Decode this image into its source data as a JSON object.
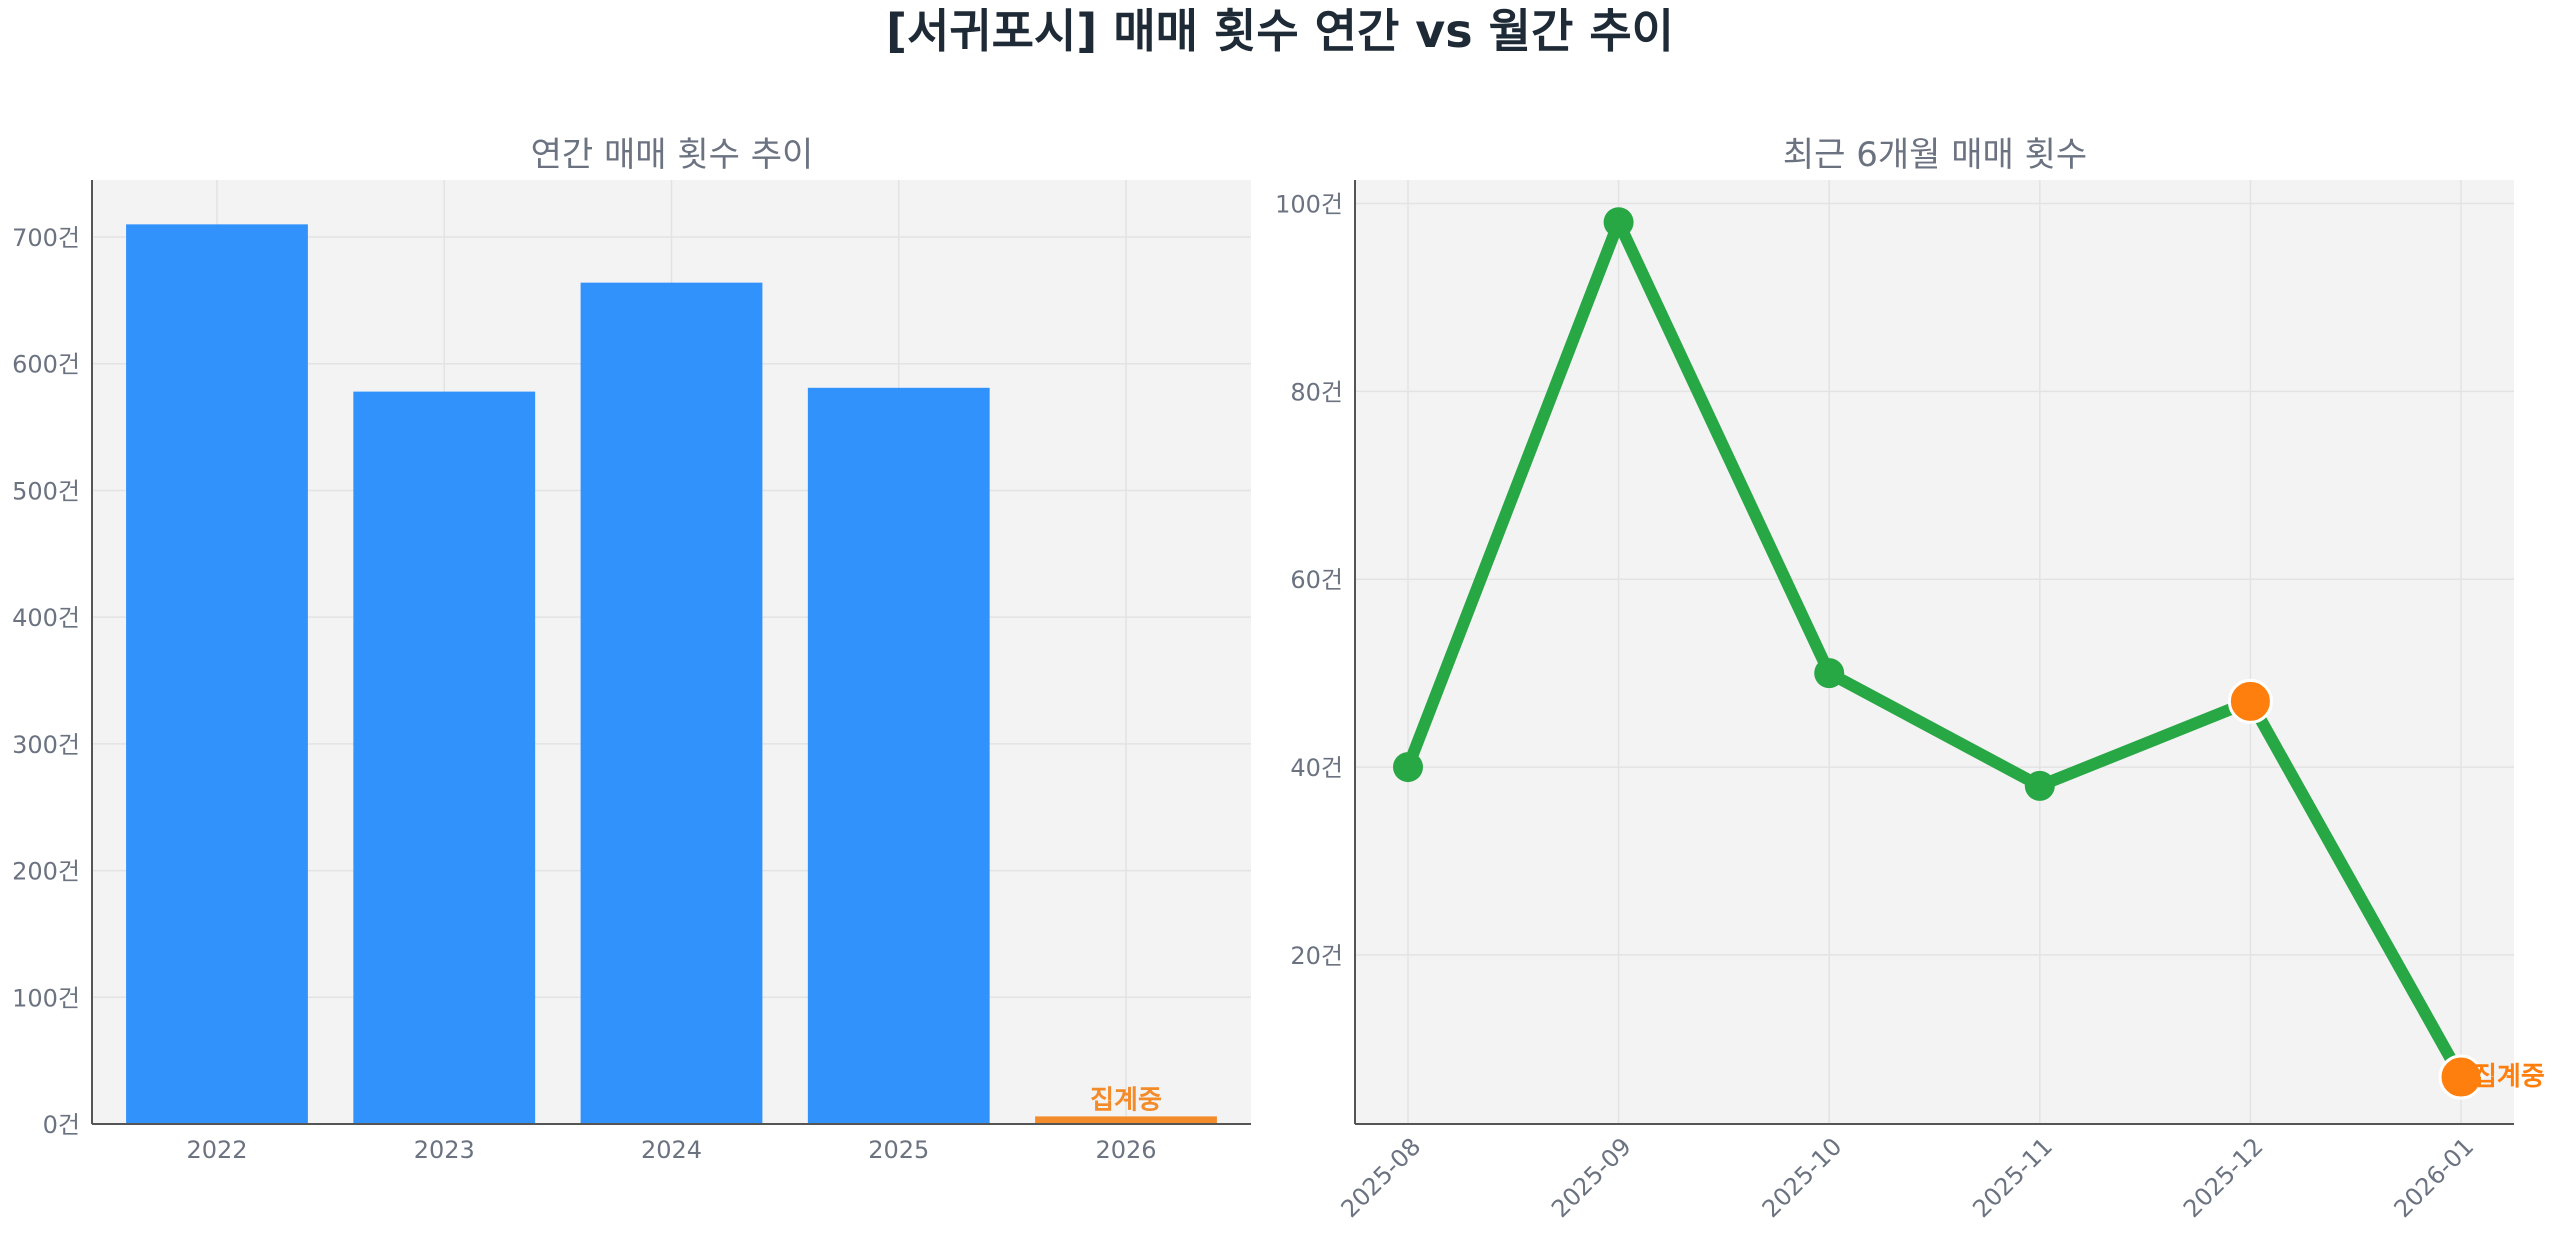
{
  "title": "[서귀포시] 매매 횟수 연간 vs 월간 추이",
  "colors": {
    "bar": "#3192fb",
    "pending": "#f48b2b",
    "line": "#28a745",
    "highlight": "#ff7f0e"
  },
  "chart_data": [
    {
      "type": "bar",
      "title": "연간 매매 횟수 추이",
      "categories": [
        "2022",
        "2023",
        "2024",
        "2025",
        "2026"
      ],
      "values": [
        710,
        578,
        664,
        581,
        6
      ],
      "pending_index": 4,
      "annotation": "집계중",
      "ylim": [
        0,
        745
      ],
      "yticks": [
        0,
        100,
        200,
        300,
        400,
        500,
        600,
        700
      ],
      "ytick_labels": [
        "0건",
        "100건",
        "200건",
        "300건",
        "400건",
        "500건",
        "600건",
        "700건"
      ],
      "grid": true
    },
    {
      "type": "line",
      "title": "최근 6개월 매매 횟수",
      "categories": [
        "2025-08",
        "2025-09",
        "2025-10",
        "2025-11",
        "2025-12",
        "2026-01"
      ],
      "values": [
        40,
        98,
        50,
        38,
        47,
        7
      ],
      "highlight_indices": [
        4,
        5
      ],
      "annotation": "집계중",
      "ylim": [
        2,
        102.5
      ],
      "yticks": [
        20,
        40,
        60,
        80,
        100
      ],
      "ytick_labels": [
        "20건",
        "40건",
        "60건",
        "80건",
        "100건"
      ],
      "grid": true
    }
  ]
}
